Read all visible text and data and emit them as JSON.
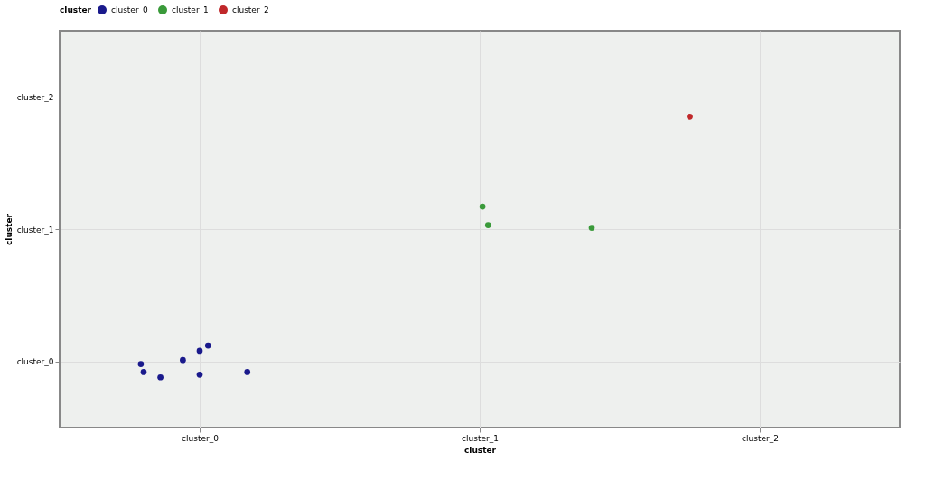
{
  "chart_data": {
    "type": "scatter",
    "xlabel": "cluster",
    "ylabel": "cluster",
    "legend_title": "cluster",
    "xlim": [
      -0.5,
      2.5
    ],
    "ylim": [
      -0.5,
      2.5
    ],
    "xticks": [
      {
        "value": 0,
        "label": "cluster_0"
      },
      {
        "value": 1,
        "label": "cluster_1"
      },
      {
        "value": 2,
        "label": "cluster_2"
      }
    ],
    "yticks": [
      {
        "value": 0,
        "label": "cluster_0"
      },
      {
        "value": 1,
        "label": "cluster_1"
      },
      {
        "value": 2,
        "label": "cluster_2"
      }
    ],
    "grid": true,
    "legend": "top left",
    "marker": "circle",
    "series": [
      {
        "name": "cluster_0",
        "color": "#1a1a8c",
        "x": [
          -0.21,
          -0.2,
          -0.14,
          -0.06,
          0.0,
          0.03,
          0.0,
          0.17
        ],
        "values": [
          -0.02,
          -0.08,
          -0.12,
          0.01,
          0.08,
          0.12,
          -0.1,
          -0.08
        ]
      },
      {
        "name": "cluster_1",
        "color": "#3a9a3a",
        "x": [
          1.01,
          1.03,
          1.4
        ],
        "values": [
          1.17,
          1.03,
          1.01
        ]
      },
      {
        "name": "cluster_2",
        "color": "#c0282a",
        "x": [
          1.75
        ],
        "values": [
          1.85
        ]
      }
    ]
  }
}
